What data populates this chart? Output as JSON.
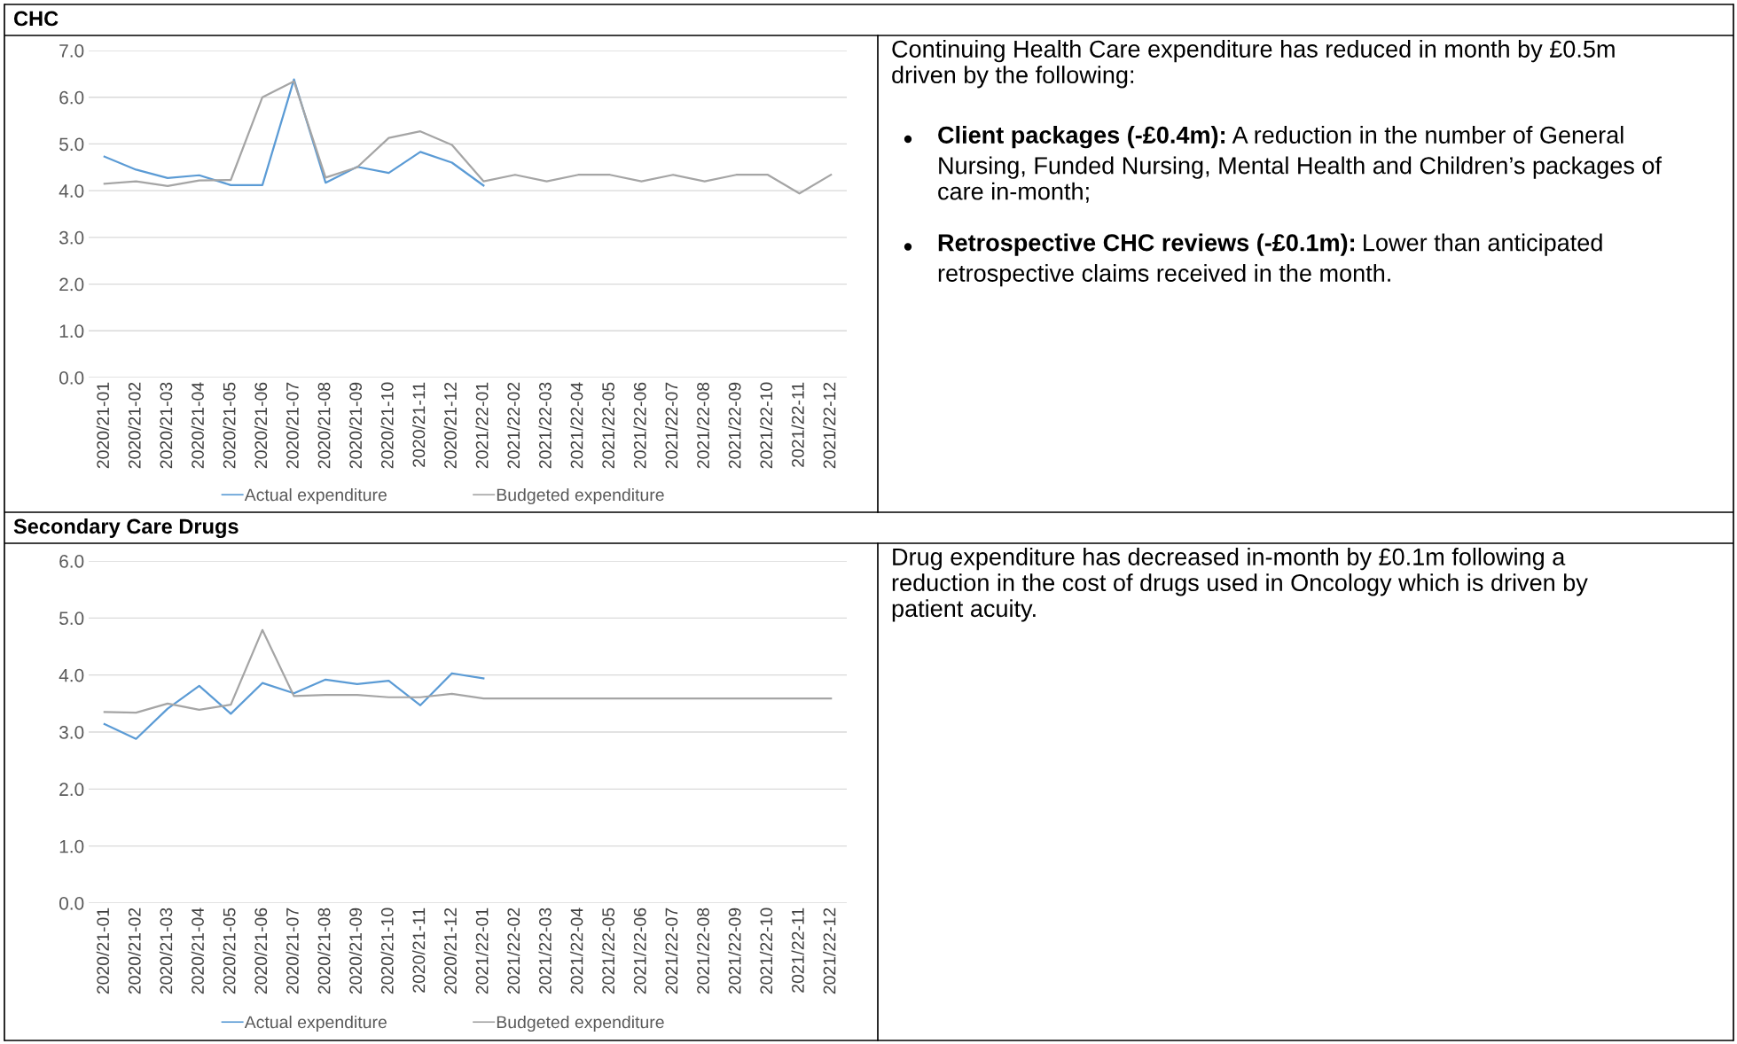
{
  "chart_data": [
    {
      "type": "line",
      "title": "CHC",
      "categories": [
        "2020/21-01",
        "2020/21-02",
        "2020/21-03",
        "2020/21-04",
        "2020/21-05",
        "2020/21-06",
        "2020/21-07",
        "2020/21-08",
        "2020/21-09",
        "2020/21-10",
        "2020/21-11",
        "2020/21-12",
        "2021/22-01",
        "2021/22-02",
        "2021/22-03",
        "2021/22-04",
        "2021/22-05",
        "2021/22-06",
        "2021/22-07",
        "2021/22-08",
        "2021/22-09",
        "2021/22-10",
        "2021/22-11",
        "2021/22-12"
      ],
      "series": [
        {
          "name": "Actual expenditure",
          "color": "#5b9bd5",
          "values": [
            4.73,
            4.45,
            4.27,
            4.33,
            4.12,
            4.12,
            6.38,
            4.17,
            4.51,
            4.38,
            4.83,
            4.6,
            4.11,
            null,
            null,
            null,
            null,
            null,
            null,
            null,
            null,
            null,
            null,
            null
          ]
        },
        {
          "name": "Budgeted expenditure",
          "color": "#a5a5a5",
          "values": [
            4.15,
            4.2,
            4.1,
            4.22,
            4.23,
            6.0,
            6.34,
            4.28,
            4.5,
            5.13,
            5.27,
            4.98,
            4.2,
            4.34,
            4.2,
            4.34,
            4.34,
            4.2,
            4.34,
            4.2,
            4.34,
            4.34,
            3.94,
            4.34
          ]
        }
      ],
      "ylim": [
        0,
        7
      ],
      "yticks": [
        {
          "value": 0,
          "label": "0.0"
        },
        {
          "value": 1,
          "label": "1.0"
        },
        {
          "value": 2,
          "label": "2.0"
        },
        {
          "value": 3,
          "label": "3.0"
        },
        {
          "value": 4,
          "label": "4.0"
        },
        {
          "value": 5,
          "label": "5.0"
        },
        {
          "value": 6,
          "label": "6.0"
        },
        {
          "value": 7,
          "label": "7.0"
        }
      ],
      "grid": "y",
      "legend": "bottom",
      "marker": "none",
      "line_style": "solid"
    },
    {
      "type": "other",
      "annotations": [
        "Continuing Health Care expenditure has reduced in month by £0.5m\ndriven by the following:",
        "Client packages (-£0.4m):",
        "A reduction in the number of General\nNursing, Funded Nursing, Mental Health and Children’s packages of\ncare in-month;",
        "Retrospective CHC reviews (-£0.1m):",
        "Lower than anticipated\nretrospective claims received in the month."
      ]
    },
    {
      "type": "line",
      "title": "Secondary Care Drugs",
      "categories": [
        "2020/21-01",
        "2020/21-02",
        "2020/21-03",
        "2020/21-04",
        "2020/21-05",
        "2020/21-06",
        "2020/21-07",
        "2020/21-08",
        "2020/21-09",
        "2020/21-10",
        "2020/21-11",
        "2020/21-12",
        "2021/22-01",
        "2021/22-02",
        "2021/22-03",
        "2021/22-04",
        "2021/22-05",
        "2021/22-06",
        "2021/22-07",
        "2021/22-08",
        "2021/22-09",
        "2021/22-10",
        "2021/22-11",
        "2021/22-12"
      ],
      "series": [
        {
          "name": "Actual expenditure",
          "color": "#5b9bd5",
          "values": [
            3.14,
            2.88,
            3.41,
            3.81,
            3.32,
            3.86,
            3.68,
            3.92,
            3.84,
            3.9,
            3.47,
            4.03,
            3.94,
            null,
            null,
            null,
            null,
            null,
            null,
            null,
            null,
            null,
            null,
            null
          ]
        },
        {
          "name": "Budgeted expenditure",
          "color": "#a5a5a5",
          "values": [
            3.35,
            3.34,
            3.5,
            3.39,
            3.48,
            4.79,
            3.63,
            3.65,
            3.65,
            3.61,
            3.61,
            3.67,
            3.59,
            3.59,
            3.59,
            3.59,
            3.59,
            3.59,
            3.59,
            3.59,
            3.59,
            3.59,
            3.59,
            3.59
          ]
        }
      ],
      "ylim": [
        0,
        6
      ],
      "yticks": [
        {
          "value": 0,
          "label": "0.0"
        },
        {
          "value": 1,
          "label": "1.0"
        },
        {
          "value": 2,
          "label": "2.0"
        },
        {
          "value": 3,
          "label": "3.0"
        },
        {
          "value": 4,
          "label": "4.0"
        },
        {
          "value": 5,
          "label": "5.0"
        },
        {
          "value": 6,
          "label": "6.0"
        }
      ],
      "grid": "y",
      "legend": "bottom",
      "marker": "none",
      "line_style": "solid"
    },
    {
      "type": "other",
      "annotations": [
        "Drug expenditure has decreased in-month by £0.1m following a\nreduction in the cost of drugs used in Oncology which is driven by\npatient acuity."
      ]
    }
  ]
}
